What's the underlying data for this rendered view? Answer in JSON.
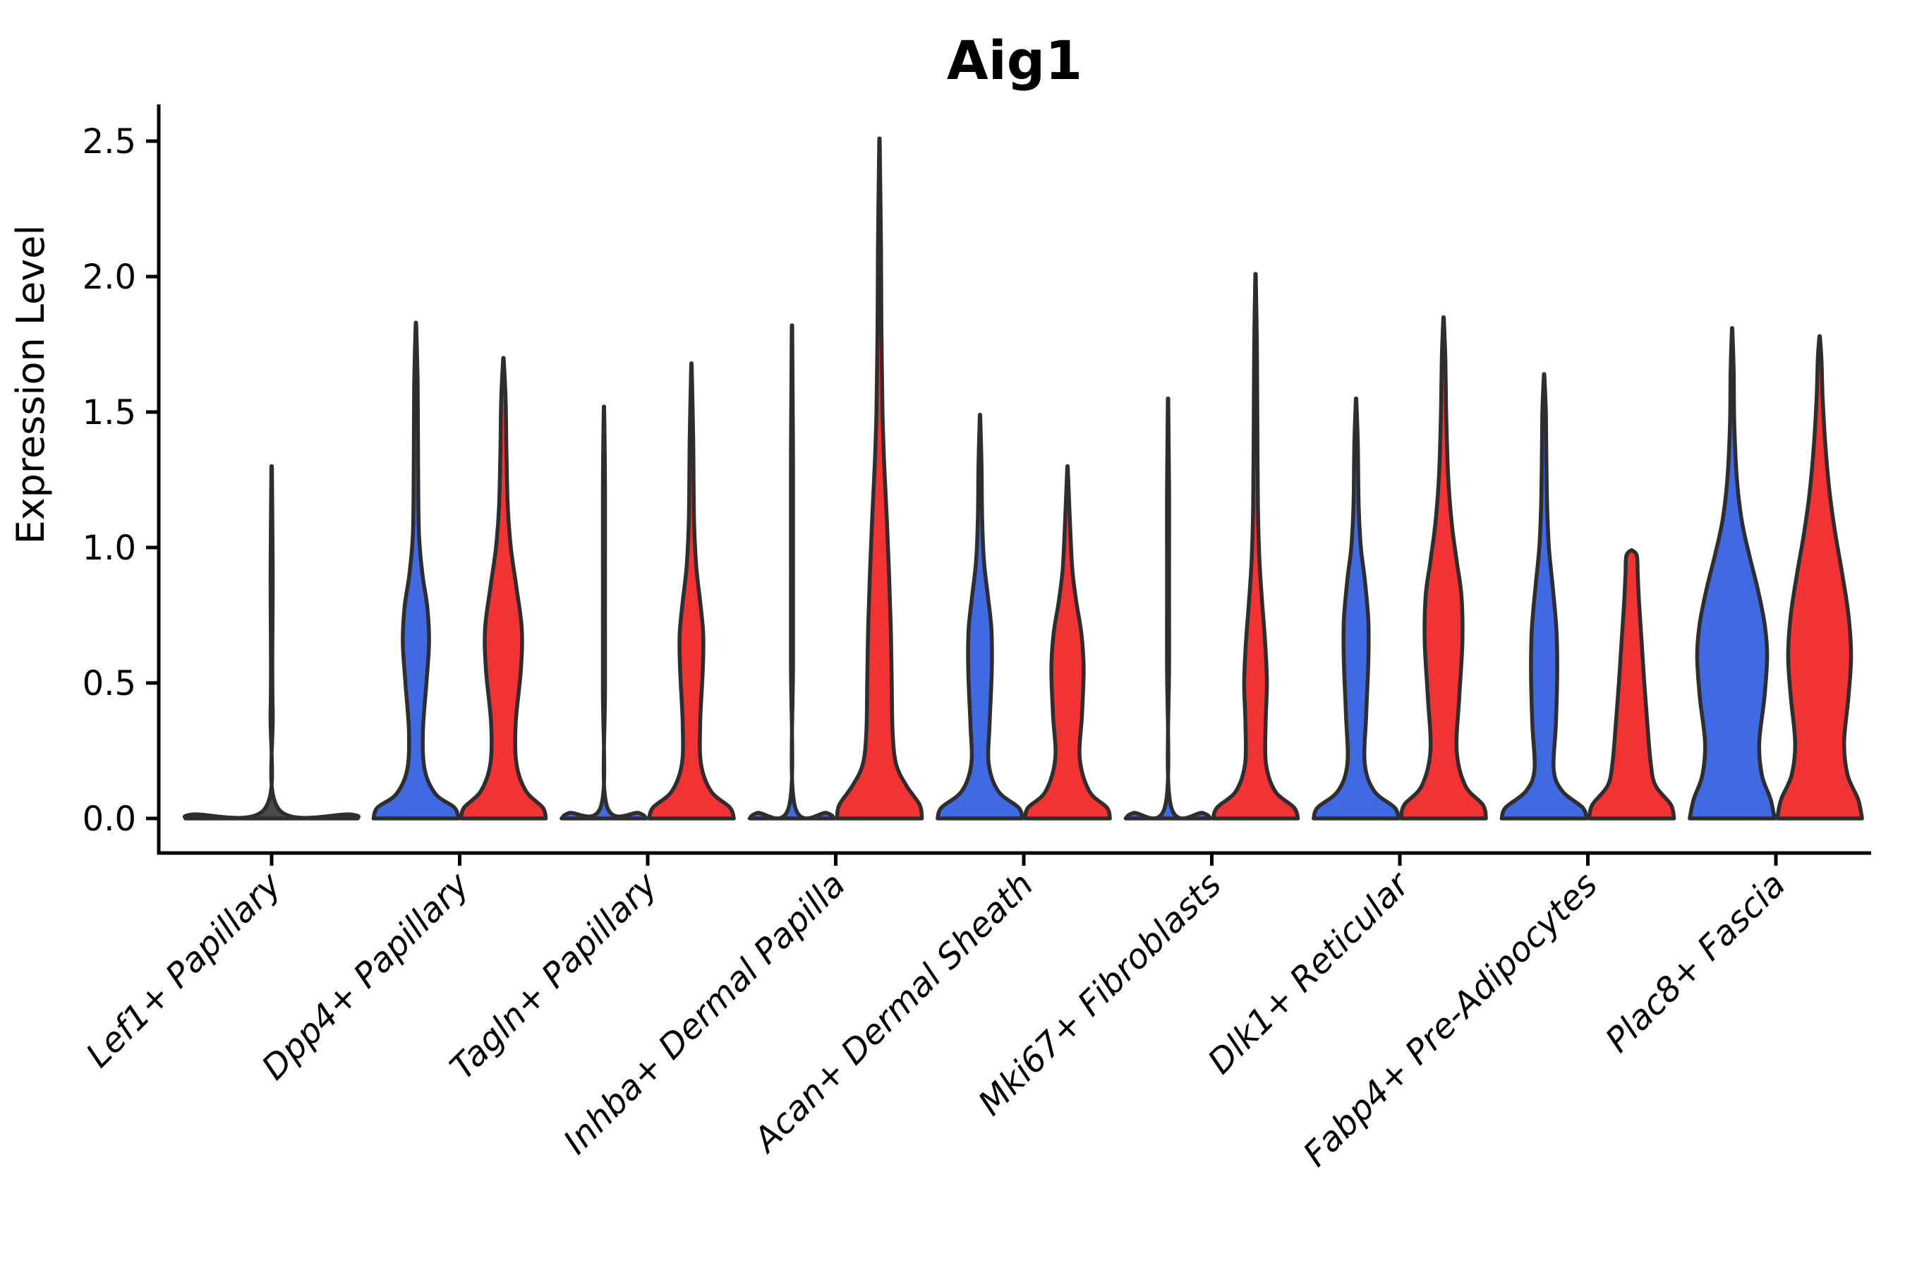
{
  "chart_data": {
    "type": "violin",
    "title": "Aig1",
    "ylabel": "Expression Level",
    "ylim": [
      0,
      2.6
    ],
    "yticks": [
      0.0,
      0.5,
      1.0,
      1.5,
      2.0,
      2.5
    ],
    "ytick_labels": [
      "0.0",
      "0.5",
      "1.0",
      "1.5",
      "2.0",
      "2.5"
    ],
    "legend_position": "none",
    "grid": false,
    "colors": {
      "blue_series": "#4169E1",
      "red_series": "#F23333",
      "flat_violin_fill": "#4a4a4a",
      "violin_outline": "#2E2E2E",
      "axis_color": "#000000",
      "background": "#ffffff"
    },
    "categories": [
      "Lef1+ Papillary",
      "Dpp4+ Papillary",
      "Tagln+ Papillary",
      "Inhba+ Dermal Papilla",
      "Acan+ Dermal Sheath",
      "Mki67+ Fibroblasts",
      "Dlk1+ Reticular",
      "Fabp4+ Pre-Adipocytes",
      "Plac8+ Fascia"
    ],
    "violins": [
      {
        "category": "Lef1+ Papillary",
        "group": "single",
        "flat": true,
        "max_expression": 1.3,
        "profile": [
          [
            0,
            0.985
          ],
          [
            0.015,
            0.9
          ],
          [
            0.035,
            0.08
          ],
          [
            0.4,
            0.012
          ],
          [
            0.9,
            0.012
          ],
          [
            1.3,
            0.003
          ]
        ]
      },
      {
        "category": "Dpp4+ Papillary",
        "group": "blue",
        "flat": false,
        "max_expression": 1.83,
        "profile": [
          [
            0,
            0.97
          ],
          [
            0.04,
            0.88
          ],
          [
            0.09,
            0.45
          ],
          [
            0.18,
            0.2
          ],
          [
            0.32,
            0.16
          ],
          [
            0.5,
            0.24
          ],
          [
            0.65,
            0.3
          ],
          [
            0.78,
            0.26
          ],
          [
            0.9,
            0.15
          ],
          [
            1.05,
            0.07
          ],
          [
            1.3,
            0.05
          ],
          [
            1.6,
            0.04
          ],
          [
            1.83,
            0.005
          ]
        ]
      },
      {
        "category": "Dpp4+ Papillary",
        "group": "red",
        "flat": false,
        "max_expression": 1.7,
        "profile": [
          [
            0,
            0.97
          ],
          [
            0.04,
            0.9
          ],
          [
            0.1,
            0.52
          ],
          [
            0.2,
            0.3
          ],
          [
            0.35,
            0.28
          ],
          [
            0.55,
            0.4
          ],
          [
            0.7,
            0.42
          ],
          [
            0.85,
            0.3
          ],
          [
            1.0,
            0.17
          ],
          [
            1.15,
            0.1
          ],
          [
            1.35,
            0.07
          ],
          [
            1.55,
            0.05
          ],
          [
            1.7,
            0.005
          ]
        ]
      },
      {
        "category": "Tagln+ Papillary",
        "group": "blue",
        "flat": true,
        "max_expression": 1.52,
        "profile": [
          [
            0,
            0.97
          ],
          [
            0.02,
            0.8
          ],
          [
            0.05,
            0.06
          ],
          [
            0.5,
            0.025
          ],
          [
            1.2,
            0.025
          ],
          [
            1.52,
            0.005
          ]
        ]
      },
      {
        "category": "Tagln+ Papillary",
        "group": "red",
        "flat": false,
        "max_expression": 1.68,
        "profile": [
          [
            0,
            0.97
          ],
          [
            0.04,
            0.88
          ],
          [
            0.1,
            0.45
          ],
          [
            0.2,
            0.22
          ],
          [
            0.35,
            0.2
          ],
          [
            0.55,
            0.26
          ],
          [
            0.68,
            0.27
          ],
          [
            0.8,
            0.2
          ],
          [
            0.93,
            0.11
          ],
          [
            1.1,
            0.06
          ],
          [
            1.4,
            0.04
          ],
          [
            1.68,
            0.005
          ]
        ]
      },
      {
        "category": "Inhba+ Dermal Papilla",
        "group": "blue",
        "flat": true,
        "max_expression": 1.82,
        "profile": [
          [
            0,
            0.97
          ],
          [
            0.02,
            0.8
          ],
          [
            0.05,
            0.06
          ],
          [
            0.6,
            0.025
          ],
          [
            1.3,
            0.025
          ],
          [
            1.82,
            0.005
          ]
        ]
      },
      {
        "category": "Inhba+ Dermal Papilla",
        "group": "red",
        "flat": false,
        "max_expression": 2.51,
        "profile": [
          [
            0,
            0.97
          ],
          [
            0.05,
            0.92
          ],
          [
            0.12,
            0.62
          ],
          [
            0.2,
            0.38
          ],
          [
            0.32,
            0.3
          ],
          [
            0.5,
            0.28
          ],
          [
            0.7,
            0.26
          ],
          [
            0.9,
            0.22
          ],
          [
            1.1,
            0.17
          ],
          [
            1.3,
            0.11
          ],
          [
            1.5,
            0.07
          ],
          [
            1.8,
            0.045
          ],
          [
            2.1,
            0.035
          ],
          [
            2.51,
            0.005
          ]
        ]
      },
      {
        "category": "Acan+ Dermal Sheath",
        "group": "blue",
        "flat": false,
        "max_expression": 1.49,
        "profile": [
          [
            0,
            0.97
          ],
          [
            0.04,
            0.88
          ],
          [
            0.1,
            0.42
          ],
          [
            0.2,
            0.2
          ],
          [
            0.35,
            0.22
          ],
          [
            0.55,
            0.27
          ],
          [
            0.7,
            0.26
          ],
          [
            0.82,
            0.18
          ],
          [
            0.95,
            0.09
          ],
          [
            1.1,
            0.05
          ],
          [
            1.3,
            0.035
          ],
          [
            1.49,
            0.005
          ]
        ]
      },
      {
        "category": "Acan+ Dermal Sheath",
        "group": "red",
        "flat": false,
        "max_expression": 1.3,
        "profile": [
          [
            0,
            0.97
          ],
          [
            0.04,
            0.9
          ],
          [
            0.1,
            0.5
          ],
          [
            0.22,
            0.28
          ],
          [
            0.38,
            0.33
          ],
          [
            0.55,
            0.37
          ],
          [
            0.68,
            0.32
          ],
          [
            0.8,
            0.2
          ],
          [
            0.92,
            0.11
          ],
          [
            1.08,
            0.06
          ],
          [
            1.3,
            0.005
          ]
        ]
      },
      {
        "category": "Mki67+ Fibroblasts",
        "group": "blue",
        "flat": true,
        "max_expression": 1.55,
        "profile": [
          [
            0,
            0.97
          ],
          [
            0.02,
            0.8
          ],
          [
            0.05,
            0.06
          ],
          [
            0.6,
            0.025
          ],
          [
            1.2,
            0.025
          ],
          [
            1.55,
            0.005
          ]
        ]
      },
      {
        "category": "Mki67+ Fibroblasts",
        "group": "red",
        "flat": false,
        "max_expression": 2.01,
        "profile": [
          [
            0,
            0.97
          ],
          [
            0.04,
            0.88
          ],
          [
            0.1,
            0.45
          ],
          [
            0.2,
            0.24
          ],
          [
            0.35,
            0.23
          ],
          [
            0.5,
            0.26
          ],
          [
            0.65,
            0.22
          ],
          [
            0.8,
            0.15
          ],
          [
            0.95,
            0.09
          ],
          [
            1.15,
            0.055
          ],
          [
            1.5,
            0.04
          ],
          [
            1.75,
            0.03
          ],
          [
            2.01,
            0.005
          ]
        ]
      },
      {
        "category": "Dlk1+ Reticular",
        "group": "blue",
        "flat": false,
        "max_expression": 1.55,
        "profile": [
          [
            0,
            0.97
          ],
          [
            0.04,
            0.88
          ],
          [
            0.1,
            0.42
          ],
          [
            0.2,
            0.2
          ],
          [
            0.38,
            0.23
          ],
          [
            0.58,
            0.28
          ],
          [
            0.73,
            0.28
          ],
          [
            0.88,
            0.2
          ],
          [
            1.0,
            0.11
          ],
          [
            1.15,
            0.06
          ],
          [
            1.38,
            0.04
          ],
          [
            1.55,
            0.005
          ]
        ]
      },
      {
        "category": "Dlk1+ Reticular",
        "group": "red",
        "flat": false,
        "max_expression": 1.85,
        "profile": [
          [
            0,
            0.97
          ],
          [
            0.05,
            0.9
          ],
          [
            0.12,
            0.5
          ],
          [
            0.25,
            0.3
          ],
          [
            0.45,
            0.36
          ],
          [
            0.65,
            0.43
          ],
          [
            0.82,
            0.41
          ],
          [
            0.95,
            0.3
          ],
          [
            1.1,
            0.18
          ],
          [
            1.28,
            0.1
          ],
          [
            1.5,
            0.06
          ],
          [
            1.7,
            0.04
          ],
          [
            1.85,
            0.005
          ]
        ]
      },
      {
        "category": "Fabp4+ Pre-Adipocytes",
        "group": "blue",
        "flat": false,
        "max_expression": 1.64,
        "profile": [
          [
            0,
            0.97
          ],
          [
            0.04,
            0.88
          ],
          [
            0.1,
            0.42
          ],
          [
            0.18,
            0.22
          ],
          [
            0.35,
            0.27
          ],
          [
            0.55,
            0.3
          ],
          [
            0.7,
            0.28
          ],
          [
            0.85,
            0.2
          ],
          [
            1.0,
            0.11
          ],
          [
            1.15,
            0.07
          ],
          [
            1.35,
            0.05
          ],
          [
            1.5,
            0.04
          ],
          [
            1.64,
            0.005
          ]
        ]
      },
      {
        "category": "Fabp4+ Pre-Adipocytes",
        "group": "red",
        "flat": false,
        "max_expression": 0.99,
        "profile": [
          [
            0,
            0.97
          ],
          [
            0.05,
            0.9
          ],
          [
            0.12,
            0.55
          ],
          [
            0.2,
            0.44
          ],
          [
            0.35,
            0.36
          ],
          [
            0.5,
            0.29
          ],
          [
            0.65,
            0.23
          ],
          [
            0.8,
            0.17
          ],
          [
            0.9,
            0.14
          ],
          [
            0.97,
            0.12
          ],
          [
            0.99,
            0.005
          ]
        ]
      },
      {
        "category": "Plac8+ Fascia",
        "group": "blue",
        "flat": false,
        "max_expression": 1.81,
        "profile": [
          [
            0,
            0.97
          ],
          [
            0.07,
            0.88
          ],
          [
            0.16,
            0.68
          ],
          [
            0.28,
            0.62
          ],
          [
            0.45,
            0.74
          ],
          [
            0.6,
            0.8
          ],
          [
            0.72,
            0.74
          ],
          [
            0.85,
            0.58
          ],
          [
            0.98,
            0.38
          ],
          [
            1.1,
            0.22
          ],
          [
            1.25,
            0.11
          ],
          [
            1.45,
            0.05
          ],
          [
            1.65,
            0.035
          ],
          [
            1.81,
            0.005
          ]
        ]
      },
      {
        "category": "Plac8+ Fascia",
        "group": "red",
        "flat": false,
        "max_expression": 1.78,
        "profile": [
          [
            0,
            0.97
          ],
          [
            0.07,
            0.88
          ],
          [
            0.16,
            0.64
          ],
          [
            0.28,
            0.56
          ],
          [
            0.45,
            0.66
          ],
          [
            0.6,
            0.72
          ],
          [
            0.75,
            0.66
          ],
          [
            0.9,
            0.52
          ],
          [
            1.05,
            0.36
          ],
          [
            1.2,
            0.23
          ],
          [
            1.38,
            0.13
          ],
          [
            1.55,
            0.07
          ],
          [
            1.7,
            0.04
          ],
          [
            1.78,
            0.005
          ]
        ]
      }
    ]
  }
}
